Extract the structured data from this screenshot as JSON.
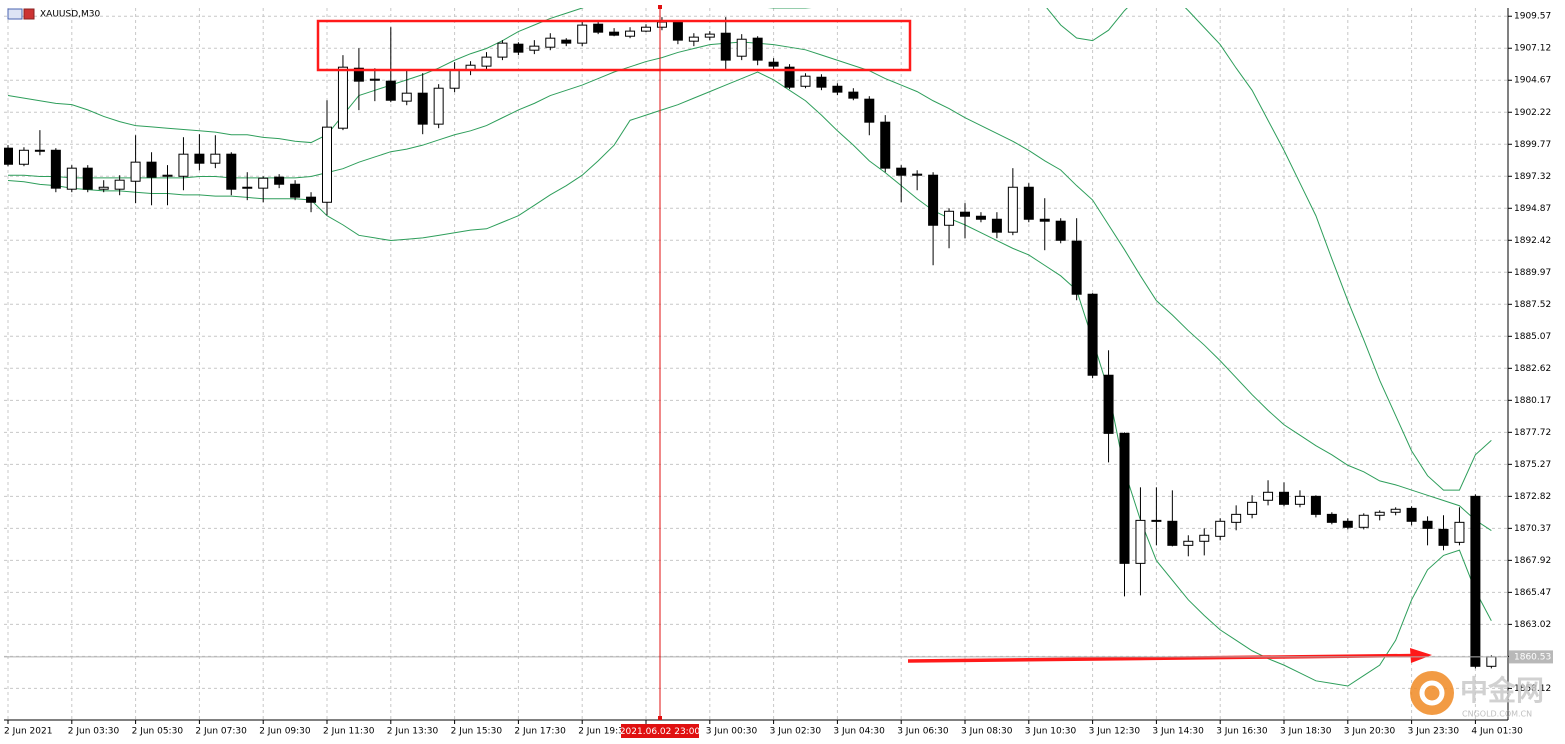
{
  "chart_data": {
    "type": "candlestick",
    "title": "XAUUSD,M30",
    "categories": [
      "2 Jun 2021",
      null,
      null,
      null,
      "2 Jun 03:30",
      null,
      null,
      null,
      "2 Jun 05:30",
      null,
      null,
      null,
      "2 Jun 07:30",
      null,
      null,
      null,
      "2 Jun 09:30",
      null,
      null,
      null,
      "2 Jun 11:30",
      null,
      null,
      null,
      "2 Jun 13:30",
      null,
      null,
      null,
      "2 Jun 15:30",
      null,
      null,
      null,
      "2 Jun 17:30",
      null,
      null,
      null,
      "2 Jun 19:30",
      null,
      null,
      null,
      null,
      null,
      null,
      null,
      "3 Jun 00:30",
      null,
      null,
      null,
      "3 Jun 02:30",
      null,
      null,
      null,
      "3 Jun 04:30",
      null,
      null,
      null,
      "3 Jun 06:30",
      null,
      null,
      null,
      "3 Jun 08:30",
      null,
      null,
      null,
      "3 Jun 10:30",
      null,
      null,
      null,
      "3 Jun 12:30",
      null,
      null,
      null,
      "3 Jun 14:30",
      null,
      null,
      null,
      "3 Jun 16:30",
      null,
      null,
      null,
      "3 Jun 18:30",
      null,
      null,
      null,
      "3 Jun 20:30",
      null,
      null,
      null,
      "3 Jun 23:30",
      null,
      null,
      null,
      "4 Jun 01:30",
      null
    ],
    "open": [
      1899.47,
      1898.24,
      1899.24,
      1899.31,
      1896.33,
      1897.94,
      1896.33,
      1896.33,
      1896.94,
      1898.4,
      1897.32,
      1897.32,
      1899.01,
      1898.32,
      1899.01,
      1896.41,
      1896.41,
      1897.25,
      1896.71,
      1895.72,
      1895.33,
      1901.0,
      1905.59,
      1904.67,
      1904.6,
      1903.07,
      1903.68,
      1901.31,
      1904.06,
      1905.44,
      1905.75,
      1906.44,
      1907.43,
      1906.97,
      1907.2,
      1907.74,
      1907.51,
      1908.96,
      1908.35,
      1908.04,
      1908.43,
      1908.73,
      1909.12,
      1907.66,
      1907.97,
      1908.27,
      1906.51,
      1907.89,
      1906.05,
      1905.67,
      1904.21,
      1904.9,
      1904.21,
      1903.76,
      1903.22,
      1901.46,
      1897.94,
      1897.4,
      1897.4,
      1893.57,
      1894.57,
      1894.26,
      1894.03,
      1893.04,
      1896.48,
      1894.03,
      1893.88,
      1892.35,
      1888.29,
      1882.09,
      1877.64,
      1867.69,
      1870.98,
      1870.91,
      1869.07,
      1869.38,
      1869.76,
      1870.83,
      1871.44,
      1872.52,
      1873.13,
      1872.21,
      1872.82,
      1871.44,
      1870.91,
      1870.45,
      1871.37,
      1871.6,
      1871.9,
      1870.91,
      1870.29,
      1869.3,
      1872.82,
      1859.81
    ],
    "high": [
      1899.7,
      1899.54,
      1900.85,
      1899.47,
      1898.17,
      1898.17,
      1897.02,
      1897.4,
      1900.46,
      1899.16,
      1898.17,
      1900.31,
      1900.54,
      1900.46,
      1899.16,
      1897.63,
      1897.32,
      1897.48,
      1897.02,
      1896.1,
      1903.14,
      1906.59,
      1907.12,
      1905.59,
      1908.73,
      1905.52,
      1905.21,
      1904.37,
      1906.05,
      1906.13,
      1906.82,
      1907.74,
      1907.58,
      1907.74,
      1908.27,
      1907.89,
      1909.27,
      1909.12,
      1908.66,
      1908.73,
      1908.96,
      1909.5,
      1909.27,
      1908.27,
      1908.43,
      1909.5,
      1908.2,
      1908.04,
      1906.36,
      1905.9,
      1905.21,
      1905.13,
      1904.44,
      1904.06,
      1903.45,
      1902.0,
      1898.17,
      1897.78,
      1897.63,
      1894.87,
      1895.26,
      1894.57,
      1894.57,
      1897.94,
      1896.79,
      1895.64,
      1894.11,
      1894.11,
      1888.37,
      1884.0,
      1877.72,
      1873.51,
      1873.51,
      1873.28,
      1869.84,
      1870.37,
      1871.14,
      1872.13,
      1872.9,
      1874.05,
      1873.89,
      1873.28,
      1872.9,
      1871.6,
      1871.14,
      1871.52,
      1871.75,
      1871.98,
      1872.06,
      1871.29,
      1871.37,
      1871.98,
      1872.97,
      1860.65
    ],
    "low": [
      1898.09,
      1898.09,
      1898.93,
      1896.1,
      1896.1,
      1896.1,
      1896.1,
      1895.87,
      1895.26,
      1895.1,
      1895.1,
      1896.25,
      1897.78,
      1897.94,
      1895.87,
      1895.49,
      1895.33,
      1896.41,
      1895.49,
      1894.57,
      1894.34,
      1900.85,
      1902.38,
      1903.07,
      1902.99,
      1902.76,
      1900.54,
      1901.0,
      1903.76,
      1905.06,
      1905.44,
      1906.21,
      1906.59,
      1906.67,
      1906.97,
      1907.28,
      1907.28,
      1908.2,
      1908.04,
      1907.89,
      1908.35,
      1908.5,
      1907.43,
      1907.28,
      1907.74,
      1905.44,
      1906.21,
      1905.82,
      1905.44,
      1903.99,
      1904.06,
      1903.91,
      1903.53,
      1903.14,
      1900.46,
      1897.63,
      1895.33,
      1896.25,
      1890.51,
      1891.81,
      1892.58,
      1893.8,
      1892.58,
      1892.81,
      1893.8,
      1891.66,
      1892.19,
      1887.83,
      1881.86,
      1875.42,
      1865.16,
      1865.24,
      1869.07,
      1868.99,
      1868.23,
      1868.3,
      1869.45,
      1870.22,
      1871.14,
      1872.13,
      1872.06,
      1871.98,
      1871.21,
      1870.68,
      1870.29,
      1870.29,
      1870.98,
      1871.37,
      1870.6,
      1869.07,
      1868.69,
      1869.07,
      1859.65,
      1859.65
    ],
    "close": [
      1898.24,
      1899.31,
      1899.31,
      1896.41,
      1897.94,
      1896.33,
      1896.48,
      1897.02,
      1898.4,
      1897.25,
      1897.4,
      1899.01,
      1898.32,
      1899.01,
      1896.33,
      1896.48,
      1897.17,
      1896.71,
      1895.72,
      1895.33,
      1901.08,
      1905.67,
      1904.6,
      1904.75,
      1903.14,
      1903.68,
      1901.31,
      1904.06,
      1905.44,
      1905.82,
      1906.44,
      1907.51,
      1906.82,
      1907.28,
      1907.89,
      1907.51,
      1908.89,
      1908.35,
      1908.12,
      1908.43,
      1908.73,
      1909.12,
      1907.74,
      1907.97,
      1908.2,
      1906.21,
      1907.81,
      1906.21,
      1905.75,
      1904.14,
      1904.98,
      1904.14,
      1903.76,
      1903.3,
      1901.46,
      1897.94,
      1897.4,
      1897.48,
      1893.57,
      1894.64,
      1894.26,
      1894.03,
      1893.04,
      1896.48,
      1894.03,
      1893.88,
      1892.42,
      1888.29,
      1882.09,
      1877.64,
      1867.69,
      1870.98,
      1870.91,
      1869.07,
      1869.38,
      1869.84,
      1870.91,
      1871.44,
      1872.36,
      1873.13,
      1872.21,
      1872.82,
      1871.44,
      1870.83,
      1870.45,
      1871.37,
      1871.6,
      1871.83,
      1870.91,
      1870.37,
      1869.07,
      1870.83,
      1859.81,
      1860.53
    ],
    "up_color": "#ffffff",
    "down_color": "#000000",
    "lines": [
      {
        "color": "#2e9e5b",
        "values": [
          1903.5,
          1903.3,
          1903.1,
          1902.9,
          1902.8,
          1902.4,
          1901.9,
          1901.5,
          1901.2,
          1901.1,
          1901.0,
          1900.9,
          1900.8,
          1900.7,
          1900.5,
          1900.5,
          1900.3,
          1900.2,
          1900.0,
          1899.9,
          1900.5,
          1902.0,
          1903.5,
          1903.9,
          1904.3,
          1904.7,
          1905.1,
          1905.6,
          1906.2,
          1906.7,
          1907.1,
          1907.7,
          1908.4,
          1908.9,
          1909.4,
          1909.8,
          1910.2,
          1910.6,
          1911.2,
          1911.6,
          1912.0,
          1912.0,
          1912.0,
          1911.7,
          1911.6,
          1910.8,
          1910.4,
          1910.3,
          1910.2,
          1910.2,
          1910.2,
          1910.3,
          1910.3,
          1910.6,
          1910.8,
          1911.0,
          1911.2,
          1911.4,
          1911.6,
          1911.6,
          1911.6,
          1911.6,
          1911.6,
          1911.4,
          1911.2,
          1910.4,
          1908.9,
          1907.9,
          1907.7,
          1908.5,
          1910.0,
          1911.2,
          1911.6,
          1911.2,
          1910.0,
          1908.7,
          1907.4,
          1905.6,
          1903.9,
          1901.6,
          1899.3,
          1896.8,
          1894.3,
          1891.0,
          1887.8,
          1884.8,
          1881.7,
          1879.0,
          1876.3,
          1874.4,
          1873.3,
          1873.3,
          1876.0,
          1877.1
        ]
      },
      {
        "color": "#2e9e5b",
        "values": [
          1897.4,
          1897.4,
          1897.3,
          1897.3,
          1897.2,
          1897.2,
          1897.2,
          1897.2,
          1897.2,
          1897.2,
          1897.2,
          1897.2,
          1897.3,
          1897.3,
          1897.2,
          1897.2,
          1897.2,
          1897.2,
          1897.2,
          1897.3,
          1897.6,
          1897.9,
          1898.4,
          1898.8,
          1899.2,
          1899.4,
          1899.7,
          1900.1,
          1900.5,
          1900.8,
          1901.2,
          1901.8,
          1902.4,
          1902.9,
          1903.5,
          1903.9,
          1904.3,
          1904.8,
          1905.3,
          1905.7,
          1906.1,
          1906.4,
          1906.8,
          1907.1,
          1907.4,
          1907.5,
          1907.6,
          1907.5,
          1907.4,
          1907.2,
          1907.0,
          1906.6,
          1906.2,
          1905.8,
          1905.4,
          1904.8,
          1904.3,
          1903.8,
          1903.1,
          1902.5,
          1901.8,
          1901.2,
          1900.6,
          1900.0,
          1899.3,
          1898.5,
          1897.8,
          1896.6,
          1895.5,
          1893.6,
          1891.7,
          1889.7,
          1887.8,
          1886.7,
          1885.5,
          1884.4,
          1883.2,
          1881.9,
          1880.6,
          1879.4,
          1878.3,
          1877.5,
          1876.7,
          1876.0,
          1875.2,
          1874.7,
          1874.0,
          1873.7,
          1873.3,
          1872.9,
          1872.5,
          1872.1,
          1871.0,
          1870.2
        ]
      },
      {
        "color": "#2e9e5b",
        "values": [
          1897.0,
          1896.9,
          1896.7,
          1896.6,
          1896.4,
          1896.3,
          1896.2,
          1896.2,
          1896.1,
          1896.0,
          1896.0,
          1895.9,
          1895.9,
          1895.8,
          1895.8,
          1895.7,
          1895.6,
          1895.6,
          1895.6,
          1895.5,
          1894.3,
          1893.6,
          1892.8,
          1892.6,
          1892.4,
          1892.5,
          1892.6,
          1892.8,
          1893.0,
          1893.2,
          1893.3,
          1893.8,
          1894.3,
          1895.1,
          1895.9,
          1896.6,
          1897.4,
          1898.5,
          1899.7,
          1901.6,
          1902.0,
          1902.4,
          1902.8,
          1903.3,
          1903.8,
          1904.3,
          1904.8,
          1905.3,
          1904.7,
          1903.9,
          1903.1,
          1902.0,
          1900.8,
          1899.7,
          1898.5,
          1897.6,
          1896.6,
          1895.6,
          1894.7,
          1894.1,
          1893.6,
          1893.0,
          1892.4,
          1891.8,
          1891.3,
          1890.5,
          1889.7,
          1888.6,
          1884.8,
          1880.9,
          1874.8,
          1871.0,
          1867.9,
          1866.4,
          1864.9,
          1863.7,
          1862.6,
          1861.8,
          1861.0,
          1860.4,
          1859.9,
          1859.3,
          1858.7,
          1858.5,
          1858.3,
          1859.1,
          1859.9,
          1861.8,
          1864.9,
          1867.2,
          1868.3,
          1868.7,
          1865.6,
          1863.3
        ]
      }
    ],
    "ylim": [
      1855.7,
      1910.2
    ],
    "yticks": [
      1909.57,
      1907.12,
      1904.67,
      1902.22,
      1899.77,
      1897.32,
      1894.87,
      1892.42,
      1889.97,
      1887.52,
      1885.07,
      1882.62,
      1880.17,
      1877.72,
      1875.27,
      1872.82,
      1870.37,
      1867.92,
      1865.47,
      1863.02,
      1860.57,
      1858.12
    ],
    "grid": true,
    "last_price": 1860.53,
    "crosshair_label": "2021.06.02 23:00"
  },
  "watermark": {
    "logo": "中金网",
    "site": "CNGOLD.COM.CN"
  }
}
